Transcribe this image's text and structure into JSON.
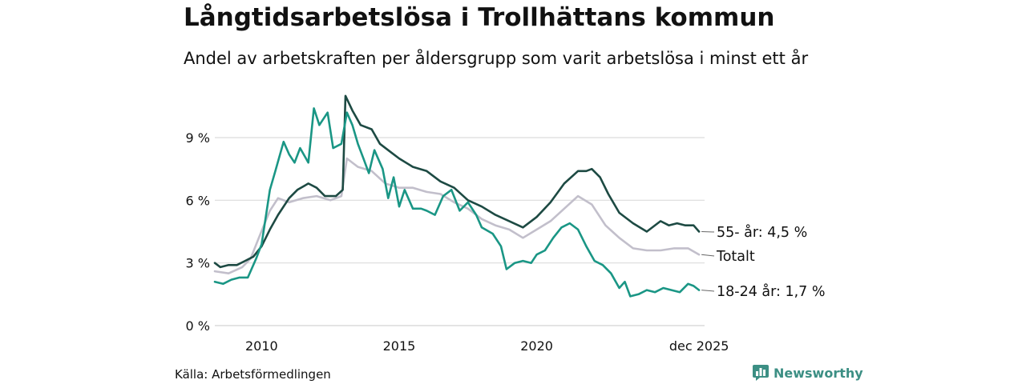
{
  "header": {
    "title": "Långtidsarbetslösa i Trollhättans kommun",
    "subtitle": "Andel av arbetskraften per åldersgrupp som varit arbetslösa i minst ett år"
  },
  "footer": {
    "source": "Källa: Arbetsförmedlingen",
    "brand": "Newsworthy"
  },
  "colors": {
    "older": "#1d4a43",
    "total": "#c2bfcb",
    "young": "#1a9685",
    "grid": "#dcdcdc",
    "brand": "#3c8f84"
  },
  "icons": [
    "newsworthy-logo-icon"
  ],
  "chart_data": {
    "type": "line",
    "title": "Långtidsarbetslösa i Trollhättans kommun",
    "xlabel": "",
    "ylabel": "",
    "xlim": [
      2008.3,
      2026.1
    ],
    "ylim": [
      0,
      9
    ],
    "grid": true,
    "legend": "direct labels at line ends",
    "x_ticks": [
      {
        "value": 2010,
        "label": "2010"
      },
      {
        "value": 2015,
        "label": "2015"
      },
      {
        "value": 2020,
        "label": "2020"
      },
      {
        "value": 2025.9,
        "label": "dec 2025"
      }
    ],
    "y_ticks": [
      {
        "value": 0,
        "label": "0 %"
      },
      {
        "value": 3,
        "label": "3 %"
      },
      {
        "value": 6,
        "label": "6 %"
      },
      {
        "value": 9,
        "label": "9 %"
      }
    ],
    "series": [
      {
        "name": "Totalt",
        "key": "total",
        "end_label": "Totalt",
        "points": [
          [
            2008.3,
            2.6
          ],
          [
            2008.8,
            2.5
          ],
          [
            2009.3,
            2.8
          ],
          [
            2009.6,
            3.2
          ],
          [
            2009.9,
            4.2
          ],
          [
            2010.3,
            5.5
          ],
          [
            2010.6,
            6.1
          ],
          [
            2011.0,
            5.9
          ],
          [
            2011.5,
            6.1
          ],
          [
            2012.0,
            6.2
          ],
          [
            2012.5,
            6.0
          ],
          [
            2012.9,
            6.2
          ],
          [
            2013.1,
            8.0
          ],
          [
            2013.5,
            7.6
          ],
          [
            2014.0,
            7.4
          ],
          [
            2014.5,
            6.8
          ],
          [
            2015.0,
            6.6
          ],
          [
            2015.5,
            6.6
          ],
          [
            2016.0,
            6.4
          ],
          [
            2016.5,
            6.3
          ],
          [
            2017.0,
            5.9
          ],
          [
            2017.5,
            5.6
          ],
          [
            2018.0,
            5.1
          ],
          [
            2018.5,
            4.8
          ],
          [
            2019.0,
            4.6
          ],
          [
            2019.5,
            4.2
          ],
          [
            2020.0,
            4.6
          ],
          [
            2020.5,
            5.0
          ],
          [
            2021.0,
            5.6
          ],
          [
            2021.5,
            6.2
          ],
          [
            2022.0,
            5.8
          ],
          [
            2022.5,
            4.8
          ],
          [
            2023.0,
            4.2
          ],
          [
            2023.5,
            3.7
          ],
          [
            2024.0,
            3.6
          ],
          [
            2024.5,
            3.6
          ],
          [
            2025.0,
            3.7
          ],
          [
            2025.5,
            3.7
          ],
          [
            2025.9,
            3.4
          ]
        ]
      },
      {
        "name": "55- år",
        "key": "older",
        "end_label": "55- år: 4,5 %",
        "points": [
          [
            2008.3,
            3.0
          ],
          [
            2008.5,
            2.8
          ],
          [
            2008.8,
            2.9
          ],
          [
            2009.1,
            2.9
          ],
          [
            2009.4,
            3.1
          ],
          [
            2009.7,
            3.3
          ],
          [
            2010.0,
            3.8
          ],
          [
            2010.3,
            4.6
          ],
          [
            2010.6,
            5.3
          ],
          [
            2011.0,
            6.1
          ],
          [
            2011.3,
            6.5
          ],
          [
            2011.7,
            6.8
          ],
          [
            2012.0,
            6.6
          ],
          [
            2012.3,
            6.2
          ],
          [
            2012.7,
            6.2
          ],
          [
            2012.95,
            6.5
          ],
          [
            2013.05,
            11.0
          ],
          [
            2013.3,
            10.3
          ],
          [
            2013.6,
            9.6
          ],
          [
            2014.0,
            9.4
          ],
          [
            2014.3,
            8.7
          ],
          [
            2014.7,
            8.3
          ],
          [
            2015.0,
            8.0
          ],
          [
            2015.5,
            7.6
          ],
          [
            2016.0,
            7.4
          ],
          [
            2016.5,
            6.9
          ],
          [
            2017.0,
            6.6
          ],
          [
            2017.5,
            6.0
          ],
          [
            2018.0,
            5.7
          ],
          [
            2018.5,
            5.3
          ],
          [
            2019.0,
            5.0
          ],
          [
            2019.5,
            4.7
          ],
          [
            2020.0,
            5.2
          ],
          [
            2020.5,
            5.9
          ],
          [
            2021.0,
            6.8
          ],
          [
            2021.5,
            7.4
          ],
          [
            2021.8,
            7.4
          ],
          [
            2022.0,
            7.5
          ],
          [
            2022.3,
            7.1
          ],
          [
            2022.6,
            6.3
          ],
          [
            2023.0,
            5.4
          ],
          [
            2023.5,
            4.9
          ],
          [
            2024.0,
            4.5
          ],
          [
            2024.5,
            5.0
          ],
          [
            2024.8,
            4.8
          ],
          [
            2025.1,
            4.9
          ],
          [
            2025.4,
            4.8
          ],
          [
            2025.7,
            4.8
          ],
          [
            2025.9,
            4.5
          ]
        ]
      },
      {
        "name": "18-24 år",
        "key": "young",
        "end_label": "18-24 år: 1,7 %",
        "points": [
          [
            2008.3,
            2.1
          ],
          [
            2008.6,
            2.0
          ],
          [
            2008.9,
            2.2
          ],
          [
            2009.2,
            2.3
          ],
          [
            2009.5,
            2.3
          ],
          [
            2009.8,
            3.2
          ],
          [
            2010.0,
            3.9
          ],
          [
            2010.3,
            6.5
          ],
          [
            2010.5,
            7.4
          ],
          [
            2010.8,
            8.8
          ],
          [
            2011.0,
            8.2
          ],
          [
            2011.2,
            7.8
          ],
          [
            2011.4,
            8.5
          ],
          [
            2011.7,
            7.8
          ],
          [
            2011.9,
            10.4
          ],
          [
            2012.1,
            9.6
          ],
          [
            2012.4,
            10.2
          ],
          [
            2012.6,
            8.5
          ],
          [
            2012.9,
            8.7
          ],
          [
            2013.1,
            10.2
          ],
          [
            2013.3,
            9.6
          ],
          [
            2013.5,
            8.7
          ],
          [
            2013.7,
            8.0
          ],
          [
            2013.9,
            7.3
          ],
          [
            2014.1,
            8.4
          ],
          [
            2014.4,
            7.5
          ],
          [
            2014.6,
            6.1
          ],
          [
            2014.8,
            7.1
          ],
          [
            2015.0,
            5.7
          ],
          [
            2015.2,
            6.5
          ],
          [
            2015.5,
            5.6
          ],
          [
            2015.8,
            5.6
          ],
          [
            2016.0,
            5.5
          ],
          [
            2016.3,
            5.3
          ],
          [
            2016.6,
            6.2
          ],
          [
            2016.9,
            6.5
          ],
          [
            2017.2,
            5.5
          ],
          [
            2017.5,
            5.9
          ],
          [
            2017.8,
            5.3
          ],
          [
            2018.0,
            4.7
          ],
          [
            2018.4,
            4.4
          ],
          [
            2018.7,
            3.8
          ],
          [
            2018.9,
            2.7
          ],
          [
            2019.2,
            3.0
          ],
          [
            2019.5,
            3.1
          ],
          [
            2019.8,
            3.0
          ],
          [
            2020.0,
            3.4
          ],
          [
            2020.3,
            3.6
          ],
          [
            2020.6,
            4.2
          ],
          [
            2020.9,
            4.7
          ],
          [
            2021.2,
            4.9
          ],
          [
            2021.5,
            4.6
          ],
          [
            2021.8,
            3.8
          ],
          [
            2022.1,
            3.1
          ],
          [
            2022.4,
            2.9
          ],
          [
            2022.7,
            2.5
          ],
          [
            2023.0,
            1.8
          ],
          [
            2023.2,
            2.1
          ],
          [
            2023.4,
            1.4
          ],
          [
            2023.7,
            1.5
          ],
          [
            2024.0,
            1.7
          ],
          [
            2024.3,
            1.6
          ],
          [
            2024.6,
            1.8
          ],
          [
            2024.9,
            1.7
          ],
          [
            2025.2,
            1.6
          ],
          [
            2025.5,
            2.0
          ],
          [
            2025.7,
            1.9
          ],
          [
            2025.9,
            1.7
          ]
        ]
      }
    ]
  }
}
